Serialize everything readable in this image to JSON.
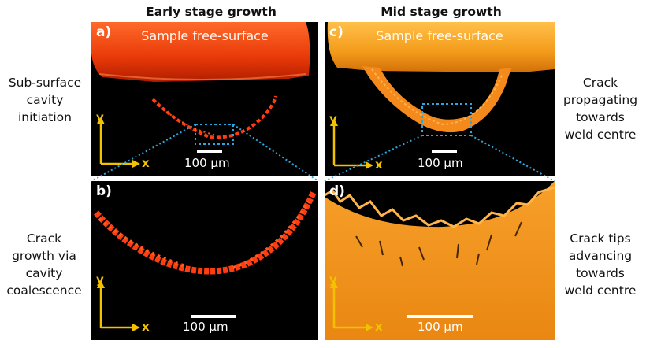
{
  "columns": {
    "left_title": "Early stage growth",
    "right_title": "Mid stage growth"
  },
  "left_labels": {
    "top": [
      "Sub-surface",
      "cavity",
      "initiation"
    ],
    "bottom": [
      "Crack",
      "growth via",
      "cavity",
      "coalescence"
    ]
  },
  "right_labels": {
    "top": [
      "Crack",
      "propagating",
      "towards",
      "weld centre"
    ],
    "bottom": [
      "Crack tips",
      "advancing",
      "towards",
      "weld centre"
    ]
  },
  "panels": {
    "a": {
      "letter": "a)",
      "surface": "Sample free-surface",
      "scale": "100 µm"
    },
    "b": {
      "letter": "b)",
      "scale": "100 µm"
    },
    "c": {
      "letter": "c)",
      "surface": "Sample free-surface",
      "scale": "100 µm"
    },
    "d": {
      "letter": "d)",
      "scale": "100 µm"
    }
  },
  "axes": {
    "x": "x",
    "y": "y"
  },
  "colors": {
    "accent_yellow": "#f2c200",
    "zoom_line": "#2aa7e0",
    "crack_red": "#ff3d10",
    "crack_orange": "#ff8a1c"
  }
}
